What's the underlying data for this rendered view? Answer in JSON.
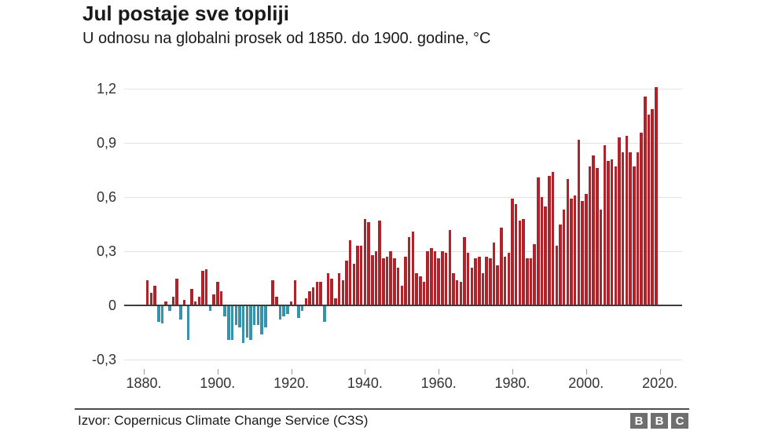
{
  "header": {
    "title": "Jul postaje sve topliji",
    "subtitle": "U odnosu na globalni prosek od 1850. do 1900. godine, °C"
  },
  "chart_data": {
    "type": "bar",
    "title": "Jul postaje sve topliji",
    "subtitle": "U odnosu na globalni prosek od 1850. do 1900. godine, °C",
    "unit": "°C",
    "grid": true,
    "legend": "none",
    "ylim": [
      -0.3,
      1.2
    ],
    "yticks": [
      1.2,
      0.9,
      0.6,
      0.3,
      0,
      -0.3
    ],
    "ytick_labels": [
      "1,2",
      "0,9",
      "0,6",
      "0,3",
      "0",
      "-0,3"
    ],
    "xticks": [
      1880,
      1900,
      1920,
      1940,
      1960,
      1980,
      2000,
      2020
    ],
    "xtick_labels": [
      "1880.",
      "1900.",
      "1920.",
      "1940.",
      "1960.",
      "1980.",
      "2000.",
      "2020."
    ],
    "colors": {
      "positive": "#b0232b",
      "negative": "#3693ac",
      "zero_axis": "#3d3d3d",
      "grid": "#e2e2e2"
    },
    "years": [
      1881,
      1882,
      1883,
      1884,
      1885,
      1886,
      1887,
      1888,
      1889,
      1890,
      1891,
      1892,
      1893,
      1894,
      1895,
      1896,
      1897,
      1898,
      1899,
      1900,
      1901,
      1902,
      1903,
      1904,
      1905,
      1906,
      1907,
      1908,
      1909,
      1910,
      1911,
      1912,
      1913,
      1914,
      1915,
      1916,
      1917,
      1918,
      1919,
      1920,
      1921,
      1922,
      1923,
      1924,
      1925,
      1926,
      1927,
      1928,
      1929,
      1930,
      1931,
      1932,
      1933,
      1934,
      1935,
      1936,
      1937,
      1938,
      1939,
      1940,
      1941,
      1942,
      1943,
      1944,
      1945,
      1946,
      1947,
      1948,
      1949,
      1950,
      1951,
      1952,
      1953,
      1954,
      1955,
      1956,
      1957,
      1958,
      1959,
      1960,
      1961,
      1962,
      1963,
      1964,
      1965,
      1966,
      1967,
      1968,
      1969,
      1970,
      1971,
      1972,
      1973,
      1974,
      1975,
      1976,
      1977,
      1978,
      1979,
      1980,
      1981,
      1982,
      1983,
      1984,
      1985,
      1986,
      1987,
      1988,
      1989,
      1990,
      1991,
      1992,
      1993,
      1994,
      1995,
      1996,
      1997,
      1998,
      1999,
      2000,
      2001,
      2002,
      2003,
      2004,
      2005,
      2006,
      2007,
      2008,
      2009,
      2010,
      2011,
      2012,
      2013,
      2014,
      2015,
      2016,
      2017,
      2018,
      2019
    ],
    "values": [
      0.14,
      0.07,
      0.11,
      -0.09,
      -0.1,
      0.02,
      -0.03,
      0.05,
      0.15,
      -0.08,
      0.03,
      -0.19,
      0.09,
      0.02,
      0.05,
      0.19,
      0.2,
      -0.03,
      0.06,
      0.13,
      0.08,
      -0.06,
      -0.19,
      -0.19,
      -0.11,
      -0.12,
      -0.21,
      -0.18,
      -0.19,
      -0.11,
      -0.11,
      -0.16,
      -0.12,
      0.0,
      0.14,
      0.05,
      -0.08,
      -0.06,
      -0.05,
      0.02,
      0.14,
      -0.07,
      -0.03,
      0.04,
      0.08,
      0.1,
      0.13,
      0.13,
      -0.09,
      0.18,
      0.15,
      0.04,
      0.18,
      0.14,
      0.25,
      0.36,
      0.23,
      0.33,
      0.33,
      0.48,
      0.46,
      0.28,
      0.3,
      0.47,
      0.26,
      0.27,
      0.3,
      0.26,
      0.21,
      0.11,
      0.27,
      0.38,
      0.41,
      0.18,
      0.16,
      0.13,
      0.3,
      0.32,
      0.3,
      0.26,
      0.3,
      0.29,
      0.42,
      0.18,
      0.14,
      0.13,
      0.38,
      0.29,
      0.21,
      0.26,
      0.27,
      0.18,
      0.27,
      0.26,
      0.35,
      0.22,
      0.43,
      0.27,
      0.29,
      0.59,
      0.56,
      0.47,
      0.48,
      0.26,
      0.26,
      0.34,
      0.71,
      0.6,
      0.55,
      0.72,
      0.74,
      0.33,
      0.45,
      0.53,
      0.7,
      0.59,
      0.61,
      0.92,
      0.58,
      0.62,
      0.77,
      0.83,
      0.76,
      0.53,
      0.89,
      0.8,
      0.81,
      0.77,
      0.93,
      0.85,
      0.94,
      0.85,
      0.77,
      0.85,
      0.96,
      1.16,
      1.06,
      1.09,
      1.21
    ]
  },
  "footer": {
    "source": "Izvor: Copernicus Climate Change Service (C3S)",
    "logo_letters": [
      "B",
      "B",
      "C"
    ]
  }
}
